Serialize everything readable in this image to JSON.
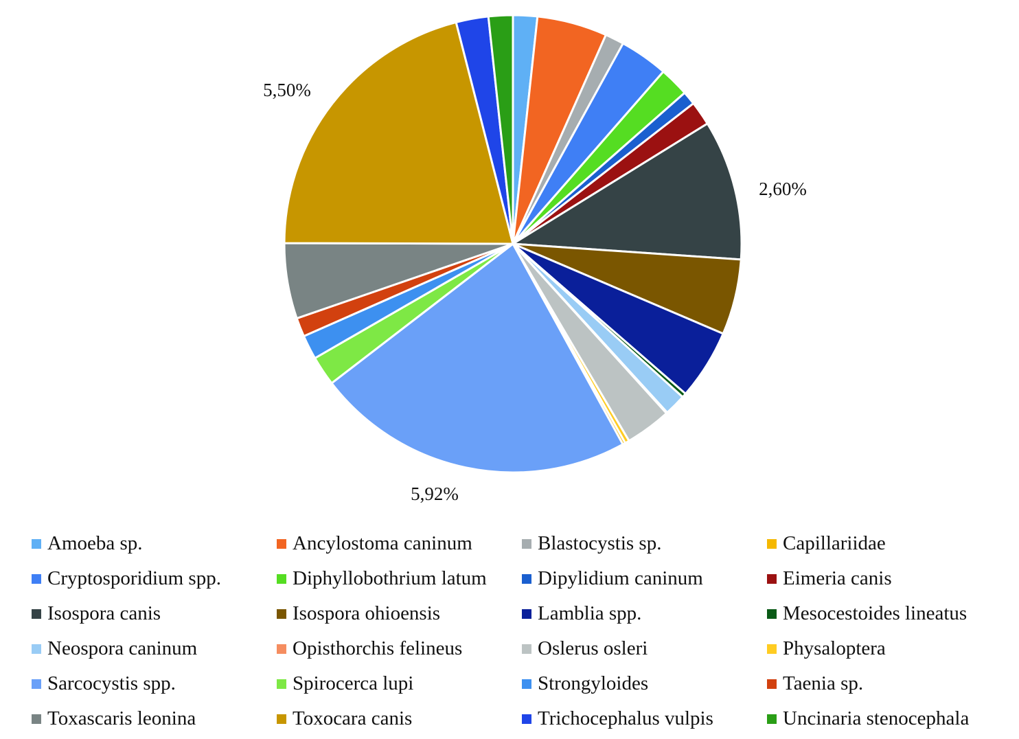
{
  "chart_data": {
    "type": "pie",
    "title": "",
    "annotations": [
      {
        "text": "5,50%",
        "category": "Toxocara canis"
      },
      {
        "text": "2,60%",
        "category": "Isospora canis"
      },
      {
        "text": "5,92%",
        "category": "Sarcocystis spp."
      }
    ],
    "categories": [
      "Amoeba sp.",
      "Ancylostoma caninum",
      "Blastocystis sp.",
      "Capillariidae",
      "Cryptosporidium spp.",
      "Diphyllobothrium latum",
      "Dipylidium caninum",
      "Eimeria canis",
      "Isospora canis",
      "Isospora ohioensis",
      "Lamblia spp.",
      "Mesocestoides lineatus",
      "Neospora caninum",
      "Opisthorchis felineus",
      "Oslerus osleri",
      "Physaloptera",
      "Sarcocystis spp.",
      "Spirocerca lupi",
      "Strongyloides",
      "Taenia sp.",
      "Toxascaris leonina",
      "Toxocara canis",
      "Trichocephalus vulpis",
      "Uncinaria stenocephala"
    ],
    "values": [
      0.45,
      1.3,
      0.35,
      0.05,
      0.9,
      0.55,
      0.25,
      0.45,
      2.6,
      1.4,
      1.3,
      0.08,
      0.4,
      0.02,
      0.85,
      0.08,
      5.92,
      0.55,
      0.45,
      0.35,
      1.4,
      5.5,
      0.6,
      0.45
    ],
    "pie_order": [
      "Amoeba sp.",
      "Ancylostoma caninum",
      "Blastocystis sp.",
      "Cryptosporidium spp.",
      "Diphyllobothrium latum",
      "Dipylidium caninum",
      "Eimeria canis",
      "Isospora canis",
      "Isospora ohioensis",
      "Lamblia spp.",
      "Mesocestoides lineatus",
      "Neospora caninum",
      "Opisthorchis felineus",
      "Oslerus osleri",
      "Physaloptera",
      "Capillariidae",
      "Sarcocystis spp.",
      "Spirocerca lupi",
      "Strongyloides",
      "Taenia sp.",
      "Toxascaris leonina",
      "Toxocara canis",
      "Trichocephalus vulpis",
      "Uncinaria stenocephala"
    ],
    "colors": {
      "Amoeba sp.": "#5fb0f5",
      "Ancylostoma caninum": "#f26522",
      "Blastocystis sp.": "#a6adb0",
      "Capillariidae": "#f5b800",
      "Cryptosporidium spp.": "#3f7ff5",
      "Diphyllobothrium latum": "#55dd22",
      "Dipylidium caninum": "#1a5fcf",
      "Eimeria canis": "#9b1111",
      "Isospora canis": "#354346",
      "Isospora ohioensis": "#7a5600",
      "Lamblia spp.": "#0a1f9a",
      "Mesocestoides lineatus": "#0a5a16",
      "Neospora caninum": "#99ccf5",
      "Opisthorchis felineus": "#f58d60",
      "Oslerus osleri": "#bcc3c3",
      "Physaloptera": "#ffcc22",
      "Sarcocystis spp.": "#6aa0f8",
      "Spirocerca lupi": "#7ee845",
      "Strongyloides": "#3d90f0",
      "Taenia sp.": "#d2410f",
      "Toxascaris leonina": "#798484",
      "Toxocara canis": "#c79600",
      "Trichocephalus vulpis": "#1f45e8",
      "Uncinaria stenocephala": "#2a9e16"
    },
    "legend_position": "bottom"
  }
}
